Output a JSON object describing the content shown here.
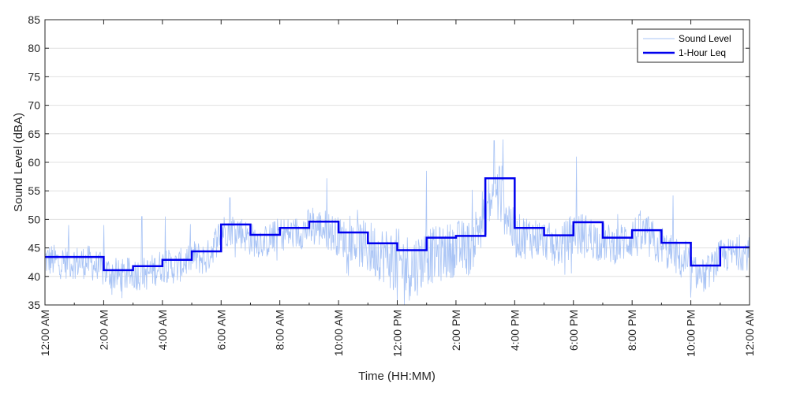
{
  "chart_data": {
    "type": "line",
    "title": "",
    "xlabel": "Time (HH:MM)",
    "ylabel": "Sound Level (dBA)",
    "xlim": [
      0,
      24
    ],
    "ylim": [
      35,
      85
    ],
    "yticks": [
      35,
      40,
      45,
      50,
      55,
      60,
      65,
      70,
      75,
      80,
      85
    ],
    "xticks": [
      0,
      2,
      4,
      6,
      8,
      10,
      12,
      14,
      16,
      18,
      20,
      22,
      24
    ],
    "xtick_labels": [
      "12:00 AM",
      "2:00 AM",
      "4:00 AM",
      "6:00 AM",
      "8:00 AM",
      "10:00 AM",
      "12:00 PM",
      "2:00 PM",
      "4:00 PM",
      "6:00 PM",
      "8:00 PM",
      "10:00 PM",
      "12:00 AM"
    ],
    "x_minor_ticks": [
      1,
      3,
      5,
      7,
      9,
      11,
      13,
      15,
      17,
      19,
      21,
      23
    ],
    "grid": "horizontal",
    "legend": "top-right",
    "colors": {
      "sound_level": "#a9c4f5",
      "leq": "#0000ee",
      "grid": "#e0e0e0",
      "axis": "#262626"
    },
    "series": [
      {
        "name": "Sound Level",
        "style": "thin-line",
        "x_hours": [
          0.0,
          0.5,
          1.0,
          1.5,
          2.0,
          2.5,
          3.0,
          3.5,
          4.0,
          4.5,
          5.0,
          5.5,
          6.0,
          6.5,
          7.0,
          7.5,
          8.0,
          8.5,
          9.0,
          9.5,
          10.0,
          10.5,
          11.0,
          11.5,
          12.0,
          12.5,
          13.0,
          13.5,
          14.0,
          14.5,
          15.0,
          15.5,
          16.0,
          16.5,
          17.0,
          17.5,
          18.0,
          18.5,
          19.0,
          19.5,
          20.0,
          20.5,
          21.0,
          21.5,
          22.0,
          22.5,
          23.0,
          23.5,
          24.0
        ],
        "y_center": [
          43,
          42.5,
          42.5,
          42.5,
          41,
          40,
          40.5,
          40.5,
          42,
          41.5,
          43.5,
          43,
          48,
          48.5,
          46.5,
          46,
          47.5,
          47.5,
          48.5,
          48.5,
          47,
          46,
          45,
          44,
          42.5,
          41.5,
          43.5,
          44,
          45,
          45,
          52,
          55,
          47,
          47,
          46.5,
          45,
          47.5,
          47,
          46,
          45.5,
          47,
          47,
          45,
          43.5,
          41,
          40,
          43.5,
          44,
          44
        ],
        "y_spread": [
          3,
          3,
          3,
          3,
          3,
          3,
          3,
          3,
          3,
          3,
          3,
          3,
          3,
          3,
          3,
          3,
          3,
          3,
          3.5,
          3.5,
          3.5,
          3.5,
          5,
          5,
          6,
          6,
          5,
          5,
          5,
          5,
          5,
          6,
          4,
          4,
          3.5,
          3.5,
          4,
          4,
          3.5,
          3.5,
          4,
          4,
          3.5,
          3.5,
          3,
          3,
          3,
          3,
          3
        ],
        "peaks": [
          [
            0.8,
            49
          ],
          [
            2.0,
            49
          ],
          [
            3.3,
            50.5
          ],
          [
            4.1,
            50.5
          ],
          [
            6.3,
            53.8
          ],
          [
            9.6,
            57.2
          ],
          [
            12.0,
            35.2
          ],
          [
            13.0,
            58.5
          ],
          [
            15.3,
            63.8
          ],
          [
            15.6,
            64
          ],
          [
            18.1,
            61
          ],
          [
            21.4,
            54.2
          ],
          [
            22.0,
            36.3
          ]
        ]
      },
      {
        "name": "1-Hour Leq",
        "style": "step",
        "hour_starts": [
          0,
          1,
          2,
          3,
          4,
          5,
          6,
          7,
          8,
          9,
          10,
          11,
          12,
          13,
          14,
          15,
          16,
          17,
          18,
          19,
          20,
          21,
          22,
          23
        ],
        "values": [
          43.4,
          43.4,
          41.1,
          41.8,
          42.9,
          44.4,
          49.1,
          47.3,
          48.5,
          49.6,
          47.7,
          45.8,
          44.6,
          46.8,
          47.1,
          57.2,
          48.5,
          47.2,
          49.5,
          46.8,
          48.1,
          45.9,
          41.9,
          45.1
        ]
      }
    ]
  }
}
